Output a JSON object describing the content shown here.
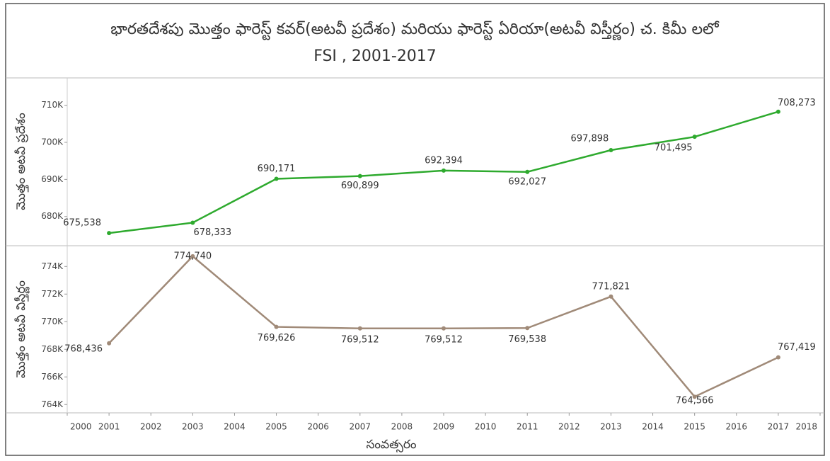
{
  "chart_data": [
    {
      "type": "line",
      "title": "భారతదేశపు మొత్తం ఫారెస్ట్ కవర్(అటవీ ప్రదేశం) మరియు ఫారెస్ట్ ఏరియా(అటవీ విస్తీర్ణం) చ. కిమీ లలో",
      "subtitle": "FSI , 2001-2017",
      "ylabel": "మొత్తం అటవీ ప్రదేశం",
      "x": [
        2001,
        2003,
        2005,
        2007,
        2009,
        2011,
        2013,
        2015,
        2017
      ],
      "xlim": [
        2000,
        2018
      ],
      "ylim": [
        672500,
        717000
      ],
      "yticks": [
        {
          "value": 680000,
          "label": "680K"
        },
        {
          "value": 690000,
          "label": "690K"
        },
        {
          "value": 700000,
          "label": "700K"
        },
        {
          "value": 710000,
          "label": "710K"
        }
      ],
      "series": [
        {
          "color": "#2eaa2e",
          "values": [
            675538,
            678333,
            690171,
            690899,
            692394,
            692027,
            697898,
            701495,
            708273
          ],
          "value_labels": [
            "675,538",
            "678,333",
            "690,171",
            "690,899",
            "692,394",
            "692,027",
            "697,898",
            "701,495",
            "708,273"
          ]
        }
      ]
    },
    {
      "type": "line",
      "ylabel": "మొత్తం అటవీ విస్తీర్ణం",
      "xlabel": "సంవత్సరం",
      "x": [
        2001,
        2003,
        2005,
        2007,
        2009,
        2011,
        2013,
        2015,
        2017
      ],
      "xlim": [
        2000,
        2018
      ],
      "xticks": [
        2000,
        2001,
        2002,
        2003,
        2004,
        2005,
        2006,
        2007,
        2008,
        2009,
        2010,
        2011,
        2012,
        2013,
        2014,
        2015,
        2016,
        2017,
        2018
      ],
      "ylim": [
        763500,
        775400
      ],
      "yticks": [
        {
          "value": 764000,
          "label": "764K"
        },
        {
          "value": 766000,
          "label": "766K"
        },
        {
          "value": 768000,
          "label": "768K"
        },
        {
          "value": 770000,
          "label": "770K"
        },
        {
          "value": 772000,
          "label": "772K"
        },
        {
          "value": 774000,
          "label": "774K"
        }
      ],
      "series": [
        {
          "color": "#a08a78",
          "values": [
            768436,
            774740,
            769626,
            769512,
            769512,
            769538,
            771821,
            764566,
            767419
          ],
          "value_labels": [
            "768,436",
            "774,740",
            "769,626",
            "769,512",
            "769,512",
            "769,538",
            "771,821",
            "764,566",
            "767,419"
          ]
        }
      ]
    }
  ]
}
